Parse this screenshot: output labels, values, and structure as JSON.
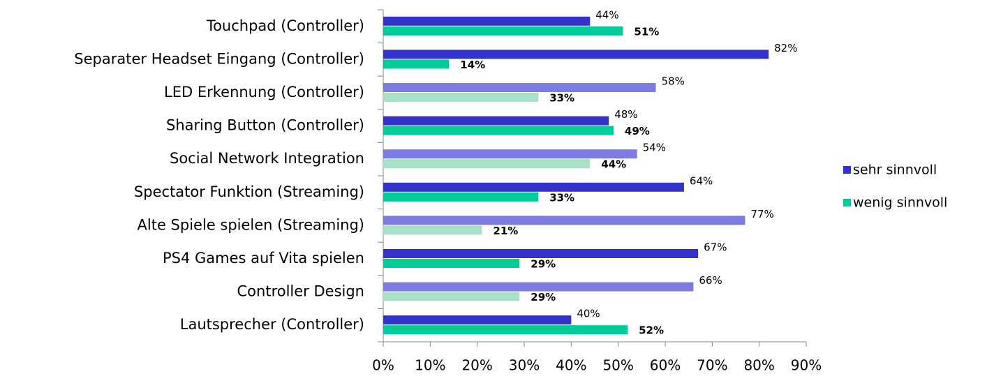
{
  "chart_data": {
    "type": "hbar",
    "categories": [
      "Touchpad (Controller)",
      "Separater Headset Eingang (Controller)",
      "LED Erkennung (Controller)",
      "Sharing Button (Controller)",
      "Social Network Integration",
      "Spectator Funktion (Streaming)",
      "Alte Spiele spielen (Streaming)",
      "PS4 Games auf Vita spielen",
      "Controller Design",
      "Lautsprecher (Controller)"
    ],
    "series": [
      {
        "name": "sehr sinnvoll",
        "color": "#3333CC",
        "point_colors": [
          "#3333CC",
          "#3333CC",
          "#7B7BE0",
          "#3333CC",
          "#7B7BE0",
          "#3333CC",
          "#7B7BE0",
          "#3333CC",
          "#7B7BE0",
          "#3333CC"
        ],
        "values": [
          44,
          82,
          58,
          48,
          54,
          64,
          77,
          67,
          66,
          40
        ],
        "value_labels": [
          "44%",
          "82%",
          "58%",
          "48%",
          "54%",
          "64%",
          "77%",
          "67%",
          "66%",
          "40%"
        ]
      },
      {
        "name": "wenig sinnvoll",
        "color": "#00CC99",
        "point_colors": [
          "#00CC99",
          "#00CC99",
          "#A8E0C8",
          "#00CC99",
          "#A8E0C8",
          "#00CC99",
          "#A8E0C8",
          "#00CC99",
          "#A8E0C8",
          "#00CC99"
        ],
        "values": [
          51,
          14,
          33,
          49,
          44,
          33,
          21,
          29,
          29,
          52
        ],
        "value_labels": [
          "51%",
          "14%",
          "33%",
          "49%",
          "44%",
          "33%",
          "21%",
          "29%",
          "29%",
          "52%"
        ]
      }
    ],
    "xlim": [
      0,
      90
    ],
    "xticks": [
      {
        "value": 0,
        "label": "0%"
      },
      {
        "value": 10,
        "label": "10%"
      },
      {
        "value": 20,
        "label": "20%"
      },
      {
        "value": 30,
        "label": "30%"
      },
      {
        "value": 40,
        "label": "40%"
      },
      {
        "value": 50,
        "label": "50%"
      },
      {
        "value": 60,
        "label": "60%"
      },
      {
        "value": 70,
        "label": "70%"
      },
      {
        "value": 80,
        "label": "80%"
      },
      {
        "value": 90,
        "label": "90%"
      }
    ],
    "legend": "right"
  }
}
